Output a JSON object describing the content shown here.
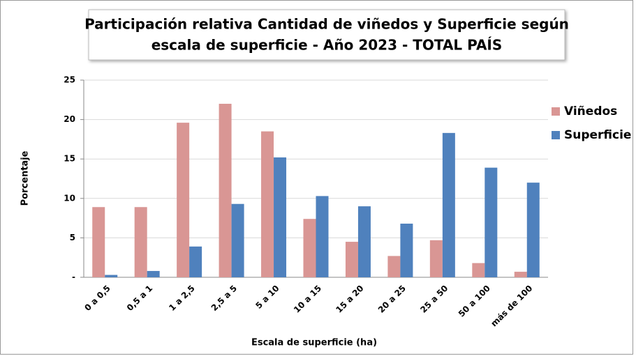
{
  "chart_data": {
    "type": "bar",
    "title": "Participación relativa Cantidad de viñedos y Superficie según",
    "subtitle": "escala de superficie - Año 2023 - TOTAL PAÍS",
    "x_label": "Escala de superficie (ha)",
    "y_label": "Porcentaje",
    "categories": [
      "0 a 0,5",
      "0,5 a 1",
      "1 a 2,5",
      "2,5 a 5",
      "5 a 10",
      "10 a 15",
      "15 a 20",
      "20 a 25",
      "25 a 50",
      "50 a 100",
      "más de 100"
    ],
    "series": [
      {
        "name": "Viñedos",
        "color": "#d99694",
        "values": [
          8.9,
          8.9,
          19.6,
          22.0,
          18.5,
          7.4,
          4.5,
          2.7,
          4.7,
          1.8,
          0.7
        ]
      },
      {
        "name": "Superficie",
        "color": "#4f81bd",
        "values": [
          0.3,
          0.8,
          3.9,
          9.3,
          15.2,
          10.3,
          9.0,
          6.8,
          18.3,
          13.9,
          12.0
        ]
      }
    ],
    "ylim": [
      0,
      25
    ],
    "yticks": [
      {
        "value": 0,
        "label": "-"
      },
      5,
      10,
      15,
      20,
      25
    ],
    "grid": true,
    "legend": "right"
  }
}
